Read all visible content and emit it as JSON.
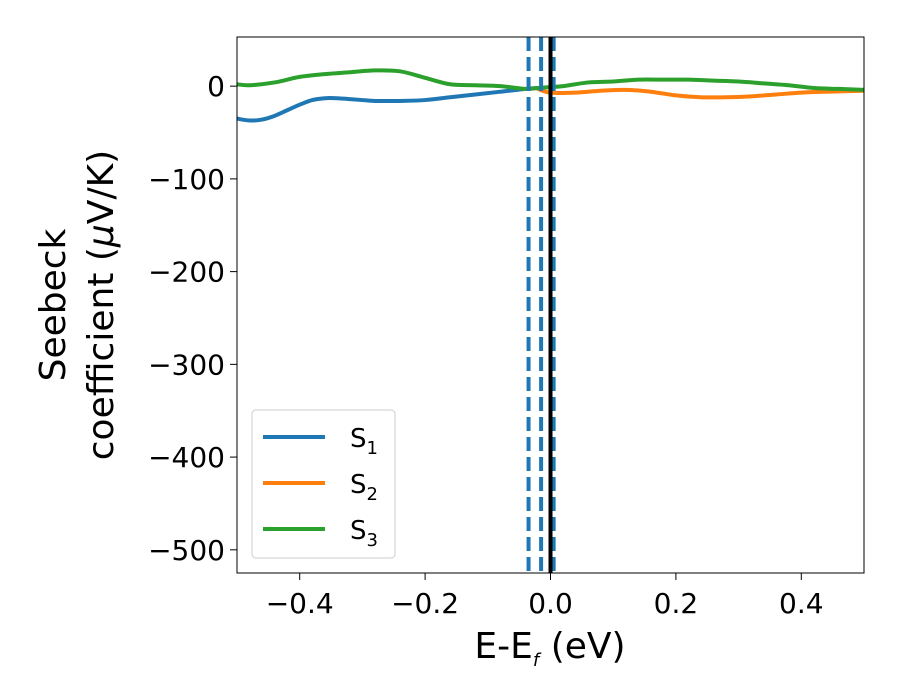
{
  "chart_data": {
    "type": "line",
    "xlabel": {
      "main": "E-E",
      "sub": "f",
      "unit": " (eV)"
    },
    "ylabel": {
      "line1": "Seebeck",
      "line2_pre": "coefficient  (",
      "mu": "μ",
      "line2_post": "V/K)"
    },
    "xlim": [
      -0.5,
      0.5
    ],
    "ylim": [
      -525,
      53
    ],
    "xticks": [
      -0.4,
      -0.2,
      0.0,
      0.2,
      0.4
    ],
    "xtick_labels": [
      "−0.4",
      "−0.2",
      "0.0",
      "0.2",
      "0.4"
    ],
    "yticks": [
      0,
      -100,
      -200,
      -300,
      -400,
      -500
    ],
    "ytick_labels": [
      "0",
      "−100",
      "−200",
      "−300",
      "−400",
      "−500"
    ],
    "grid": false,
    "legend_position": "lower-left",
    "vlines": [
      {
        "x": -0.035,
        "style": "dashed",
        "color": "#1f77b4"
      },
      {
        "x": -0.015,
        "style": "dashed",
        "color": "#1f77b4"
      },
      {
        "x": 0.005,
        "style": "dashed",
        "color": "#1f77b4"
      },
      {
        "x": 0.0,
        "style": "solid",
        "color": "#000000"
      }
    ],
    "series": [
      {
        "name": "S",
        "sub": "1",
        "color": "#1f77b4",
        "x": [
          -0.5,
          -0.48,
          -0.46,
          -0.44,
          -0.42,
          -0.4,
          -0.38,
          -0.36,
          -0.34,
          -0.32,
          -0.3,
          -0.28,
          -0.26,
          -0.24,
          -0.2,
          -0.16,
          -0.12,
          -0.08,
          -0.04,
          -0.02
        ],
        "y": [
          -35,
          -37,
          -36,
          -32,
          -26,
          -20,
          -15,
          -13,
          -13,
          -14,
          -15,
          -16,
          -16,
          -16,
          -15,
          -12,
          -9,
          -6,
          -3,
          -2
        ]
      },
      {
        "name": "S",
        "sub": "2",
        "color": "#ff7f0e",
        "x": [
          -0.02,
          0.0,
          0.04,
          0.08,
          0.12,
          0.16,
          0.2,
          0.24,
          0.28,
          0.32,
          0.36,
          0.4,
          0.44,
          0.5
        ],
        "y": [
          -3,
          -7,
          -7,
          -5,
          -4,
          -6,
          -10,
          -12,
          -12,
          -11,
          -9,
          -7,
          -6,
          -5
        ]
      },
      {
        "name": "S",
        "sub": "3",
        "color": "#2ca02c",
        "x": [
          -0.5,
          -0.48,
          -0.44,
          -0.4,
          -0.36,
          -0.32,
          -0.28,
          -0.24,
          -0.2,
          -0.16,
          -0.12,
          -0.08,
          -0.04,
          -0.02,
          0.0,
          0.02,
          0.06,
          0.1,
          0.14,
          0.18,
          0.22,
          0.26,
          0.3,
          0.34,
          0.38,
          0.42,
          0.46,
          0.5
        ],
        "y": [
          2,
          1,
          4,
          10,
          13,
          15,
          17,
          16,
          9,
          2,
          1,
          0,
          -3,
          -2,
          -1,
          0,
          4,
          5,
          7,
          7,
          7,
          6,
          5,
          3,
          1,
          -2,
          -3,
          -4
        ]
      }
    ]
  }
}
